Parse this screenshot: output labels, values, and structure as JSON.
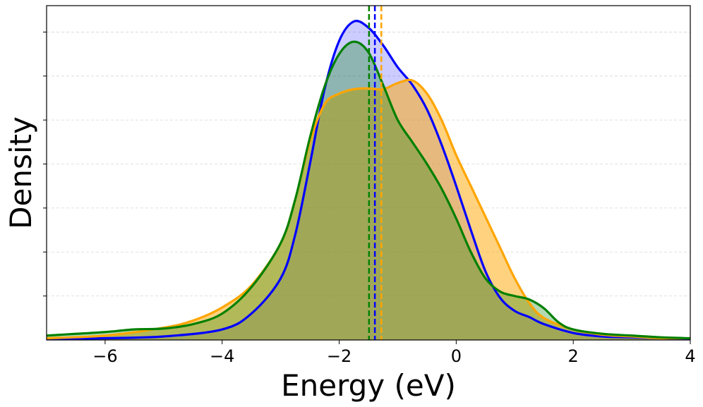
{
  "chart_data": {
    "type": "area",
    "title": "",
    "xlabel": "Energy (eV)",
    "ylabel": "Density",
    "xlim": [
      -7,
      4
    ],
    "ylim": [
      0,
      0.38
    ],
    "xticks": [
      -6,
      -4,
      -2,
      0,
      2,
      4
    ],
    "xtick_labels": [
      "−6",
      "−4",
      "−2",
      "0",
      "2",
      "4"
    ],
    "yticks": [
      0.05,
      0.1,
      0.15,
      0.2,
      0.25,
      0.3,
      0.35
    ],
    "ytick_labels_visible": false,
    "grid": "horizontal dashed",
    "legend": "none",
    "series": [
      {
        "name": "blue",
        "color": "#0000ff",
        "fill_alpha": 0.2,
        "mean_line": -1.39,
        "points": [
          [
            -7,
            0.001
          ],
          [
            -6,
            0.002
          ],
          [
            -5,
            0.004
          ],
          [
            -4,
            0.012
          ],
          [
            -3.5,
            0.03
          ],
          [
            -3,
            0.07
          ],
          [
            -2.75,
            0.12
          ],
          [
            -2.5,
            0.2
          ],
          [
            -2.25,
            0.285
          ],
          [
            -2,
            0.34
          ],
          [
            -1.75,
            0.362
          ],
          [
            -1.5,
            0.355
          ],
          [
            -1.25,
            0.335
          ],
          [
            -1,
            0.31
          ],
          [
            -0.75,
            0.29
          ],
          [
            -0.5,
            0.262
          ],
          [
            -0.25,
            0.222
          ],
          [
            0,
            0.175
          ],
          [
            0.25,
            0.125
          ],
          [
            0.5,
            0.078
          ],
          [
            0.75,
            0.048
          ],
          [
            1,
            0.033
          ],
          [
            1.25,
            0.026
          ],
          [
            1.5,
            0.018
          ],
          [
            2,
            0.008
          ],
          [
            2.5,
            0.004
          ],
          [
            3,
            0.003
          ],
          [
            3.5,
            0.002
          ],
          [
            4,
            0.001
          ]
        ]
      },
      {
        "name": "orange",
        "color": "#ffa500",
        "fill_alpha": 0.5,
        "mean_line": -1.28,
        "points": [
          [
            -7,
            0.002
          ],
          [
            -6,
            0.005
          ],
          [
            -5,
            0.014
          ],
          [
            -4.5,
            0.022
          ],
          [
            -4,
            0.037
          ],
          [
            -3.5,
            0.062
          ],
          [
            -3,
            0.11
          ],
          [
            -2.75,
            0.16
          ],
          [
            -2.5,
            0.225
          ],
          [
            -2.25,
            0.268
          ],
          [
            -2,
            0.28
          ],
          [
            -1.75,
            0.285
          ],
          [
            -1.5,
            0.286
          ],
          [
            -1.25,
            0.285
          ],
          [
            -1,
            0.292
          ],
          [
            -0.75,
            0.295
          ],
          [
            -0.5,
            0.28
          ],
          [
            -0.25,
            0.25
          ],
          [
            0,
            0.21
          ],
          [
            0.25,
            0.175
          ],
          [
            0.5,
            0.14
          ],
          [
            0.75,
            0.105
          ],
          [
            1,
            0.07
          ],
          [
            1.25,
            0.042
          ],
          [
            1.5,
            0.025
          ],
          [
            2,
            0.012
          ],
          [
            2.5,
            0.006
          ],
          [
            3,
            0.004
          ],
          [
            3.5,
            0.002
          ],
          [
            4,
            0.002
          ]
        ]
      },
      {
        "name": "green",
        "color": "#008000",
        "fill_alpha": 0.3,
        "mean_line": -1.49,
        "points": [
          [
            -7,
            0.005
          ],
          [
            -6.5,
            0.007
          ],
          [
            -6,
            0.009
          ],
          [
            -5.5,
            0.012
          ],
          [
            -5,
            0.013
          ],
          [
            -4.5,
            0.018
          ],
          [
            -4,
            0.03
          ],
          [
            -3.5,
            0.06
          ],
          [
            -3,
            0.11
          ],
          [
            -2.75,
            0.16
          ],
          [
            -2.5,
            0.23
          ],
          [
            -2.25,
            0.288
          ],
          [
            -2,
            0.325
          ],
          [
            -1.75,
            0.339
          ],
          [
            -1.5,
            0.327
          ],
          [
            -1.25,
            0.29
          ],
          [
            -1,
            0.25
          ],
          [
            -0.75,
            0.225
          ],
          [
            -0.5,
            0.2
          ],
          [
            -0.25,
            0.172
          ],
          [
            0,
            0.138
          ],
          [
            0.25,
            0.1
          ],
          [
            0.5,
            0.07
          ],
          [
            0.75,
            0.055
          ],
          [
            1,
            0.05
          ],
          [
            1.25,
            0.046
          ],
          [
            1.5,
            0.036
          ],
          [
            1.75,
            0.02
          ],
          [
            2,
            0.012
          ],
          [
            2.5,
            0.007
          ],
          [
            3,
            0.005
          ],
          [
            3.5,
            0.003
          ],
          [
            4,
            0.002
          ]
        ]
      }
    ]
  }
}
